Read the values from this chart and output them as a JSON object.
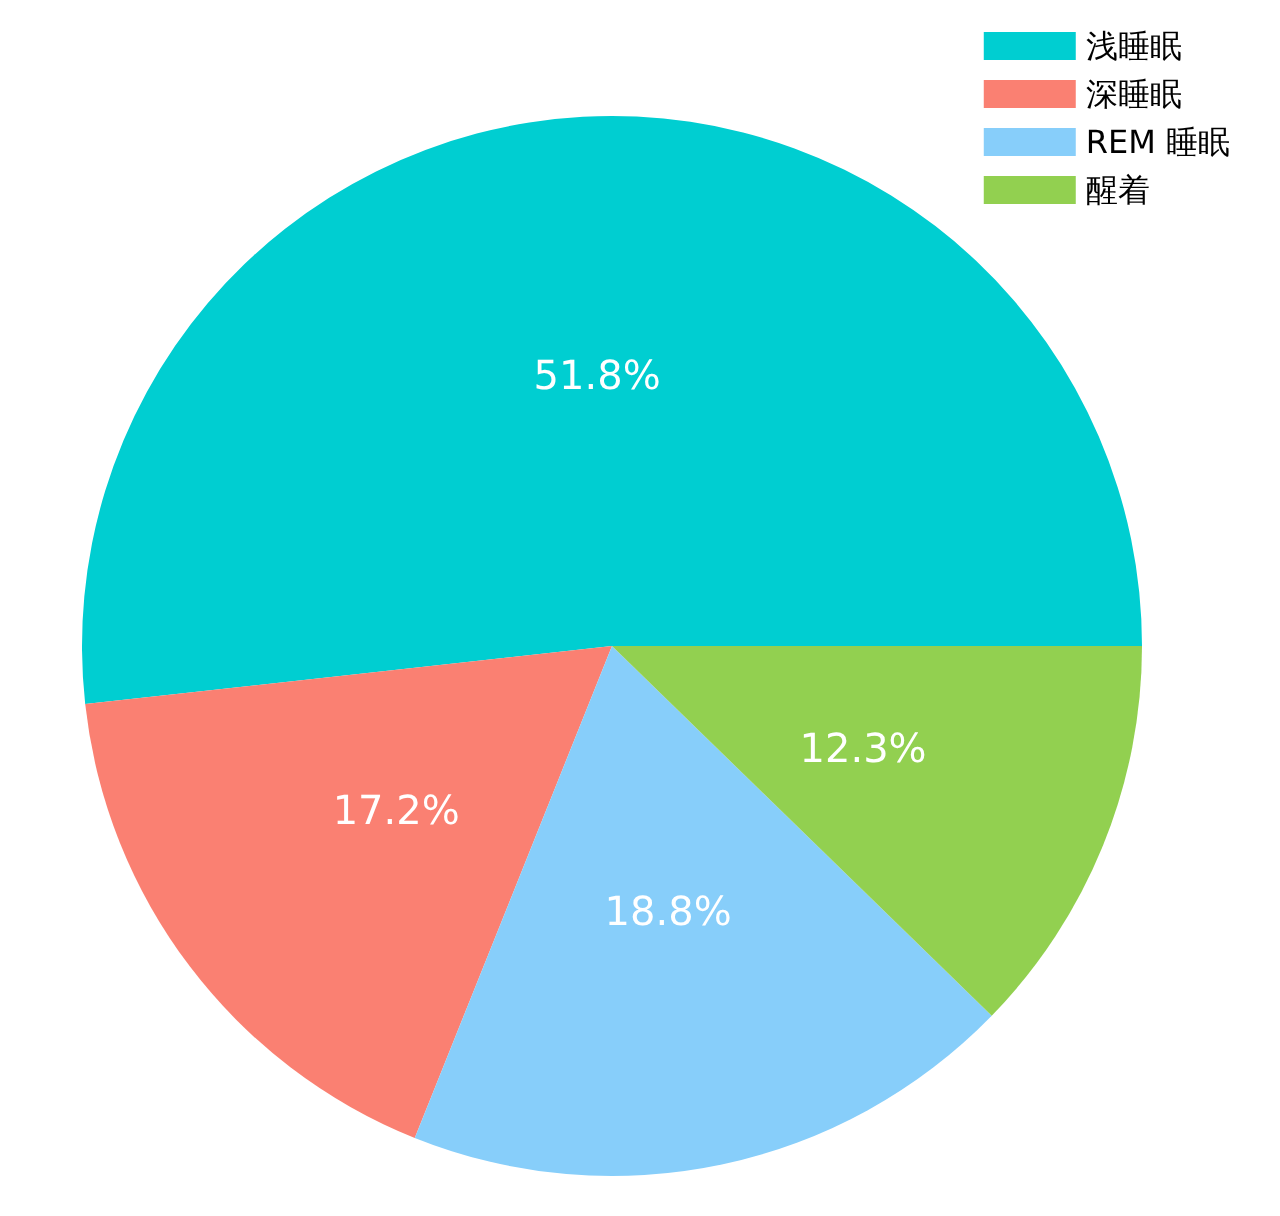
{
  "chart_data": {
    "type": "pie",
    "categories": [
      "浅睡眠",
      "深睡眠",
      "REM 睡眠",
      "醒着"
    ],
    "values": [
      51.8,
      17.2,
      18.8,
      12.3
    ],
    "colors": [
      "#00ced1",
      "#fa8072",
      "#87cefa",
      "#92d050"
    ],
    "value_labels": [
      "51.8%",
      "17.2%",
      "18.8%",
      "12.3%"
    ],
    "legend": "top right"
  }
}
